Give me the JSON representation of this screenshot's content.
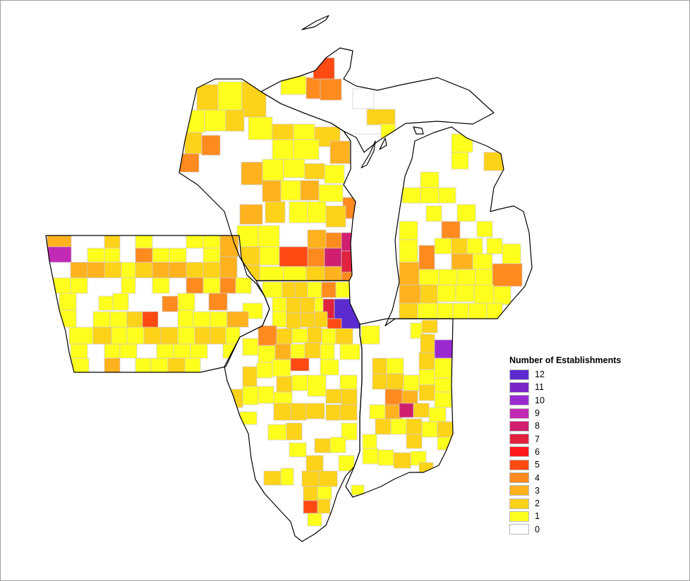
{
  "map": {
    "description_regions": [
      "Wisconsin",
      "Michigan",
      "Iowa",
      "Illinois",
      "Indiana"
    ],
    "outline_color": "#000000",
    "county_border_color": "#c8c8c8"
  },
  "legend": {
    "title": "Number of Establishments",
    "classes": [
      {
        "label": "12",
        "color": "#5b2bcf"
      },
      {
        "label": "11",
        "color": "#7a25c9"
      },
      {
        "label": "10",
        "color": "#9a2ad0"
      },
      {
        "label": "9",
        "color": "#c12ab4"
      },
      {
        "label": "8",
        "color": "#cf1f6e"
      },
      {
        "label": "7",
        "color": "#e0223f"
      },
      {
        "label": "6",
        "color": "#ff1a1a"
      },
      {
        "label": "5",
        "color": "#ff4a12"
      },
      {
        "label": "4",
        "color": "#ff8a1e"
      },
      {
        "label": "3",
        "color": "#ffb21e"
      },
      {
        "label": "2",
        "color": "#ffd21a"
      },
      {
        "label": "1",
        "color": "#ffff1e"
      },
      {
        "label": "0",
        "color": "#ffffff"
      }
    ]
  }
}
